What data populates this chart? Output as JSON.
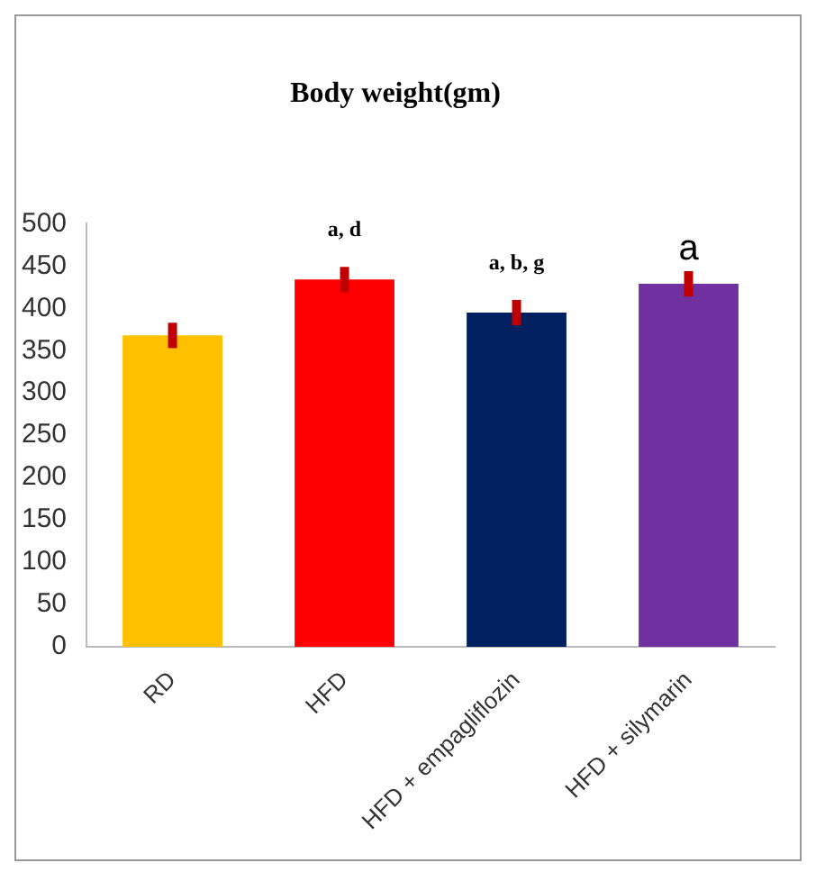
{
  "chart_data": {
    "type": "bar",
    "title": "Body weight(gm)",
    "categories": [
      "RD",
      "HFD",
      "HFD + empagliflozin",
      "HFD + silymarin"
    ],
    "values": [
      368,
      434,
      395,
      429
    ],
    "colors": [
      "#ffc000",
      "#ff0000",
      "#002060",
      "#7030a0"
    ],
    "errors": [
      15,
      15,
      15,
      15
    ],
    "ylim": [
      0,
      500
    ],
    "yticks": [
      0,
      50,
      100,
      150,
      200,
      250,
      300,
      350,
      400,
      450,
      500
    ],
    "grid": false,
    "legend": false,
    "annotations": [
      "a, d",
      "a, b, g",
      "a"
    ]
  }
}
